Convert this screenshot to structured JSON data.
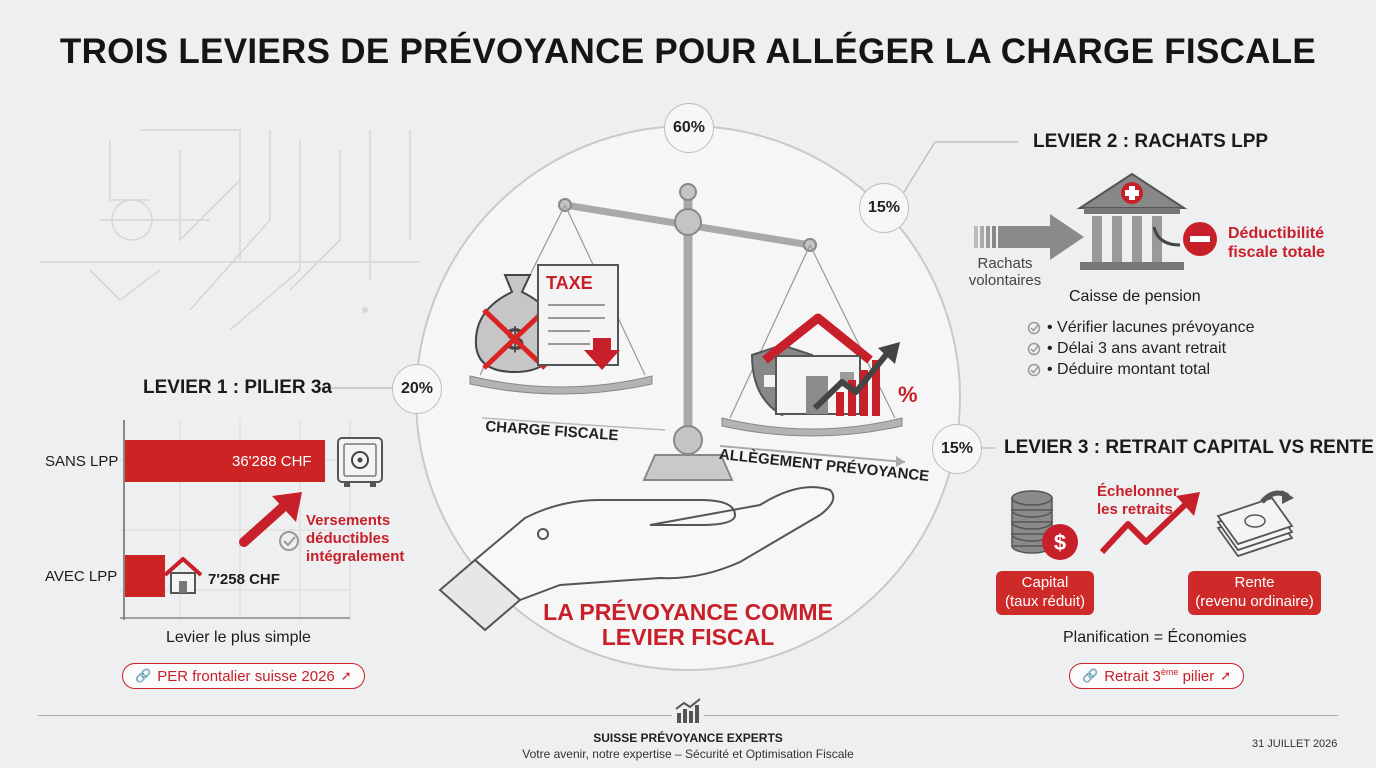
{
  "title": "TROIS LEVIERS DE PRÉVOYANCE POUR ALLÉGER LA CHARGE FISCALE",
  "center": {
    "pct_top": "60%",
    "pct_left": "20%",
    "pct_right_top": "15%",
    "pct_right_bottom": "15%",
    "tax_label": "TAXE",
    "percent_symbol": "%",
    "charge_label": "CHARGE FISCALE",
    "allegement_label": "ALLÈGEMENT PRÉVOYANCE",
    "tagline_line1": "LA PRÉVOYANCE COMME",
    "tagline_line2": "LEVIER FISCAL"
  },
  "levier1": {
    "heading": "LEVIER 1 : PILIER 3a",
    "bars": [
      {
        "label": "SANS LPP",
        "value_text": "36'288 CHF",
        "value": 36288
      },
      {
        "label": "AVEC LPP",
        "value_text": "7'258 CHF",
        "value": 7258
      }
    ],
    "note_line1": "Versements",
    "note_line2": "déductibles",
    "note_line3": "intégralement",
    "caption": "Levier le plus simple",
    "link": "PER frontalier suisse 2026"
  },
  "levier2": {
    "heading": "LEVIER 2 : RACHATS LPP",
    "rachats_line1": "Rachats",
    "rachats_line2": "volontaires",
    "caisse": "Caisse de pension",
    "deduct_line1": "Déductibilité",
    "deduct_line2": "fiscale totale",
    "checklist": [
      "• Vérifier lacunes prévoyance",
      "• Délai 3 ans avant retrait",
      "• Déduire montant total"
    ]
  },
  "levier3": {
    "heading": "LEVIER 3 : RETRAIT CAPITAL VS RENTE",
    "echelonner_line1": "Échelonner",
    "echelonner_line2": "les retraits",
    "capital_line1": "Capital",
    "capital_line2": "(taux réduit)",
    "rente_line1": "Rente",
    "rente_line2": "(revenu ordinaire)",
    "caption": "Planification = Économies",
    "link_prefix": "Retrait 3",
    "link_sup": "ème",
    "link_suffix": " pilier"
  },
  "footer": {
    "brand": "SUISSE PRÉVOYANCE EXPERTS",
    "tagline": "Votre avenir, notre expertise – Sécurité et Optimisation Fiscale",
    "date": "31 JUILLET 2026"
  },
  "colors": {
    "accent": "#c8202a",
    "background": "#eeeff0",
    "text": "#1c1c1c"
  }
}
